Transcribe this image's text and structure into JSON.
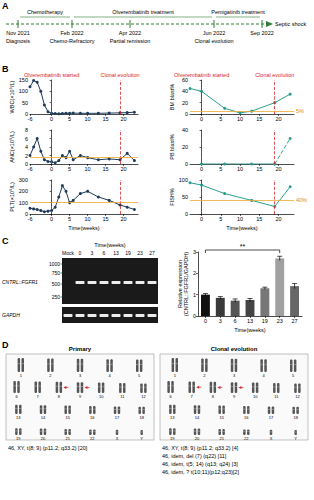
{
  "chart_data": [
    {
      "type": "line",
      "ylabel": "WBC(×10⁹/L)",
      "xlim": [
        -6,
        24
      ],
      "xticks": [
        -6,
        0,
        5,
        10,
        15,
        20
      ],
      "ylim": [
        0,
        150
      ],
      "yticks": [
        0,
        50,
        100,
        150
      ],
      "grid": false,
      "x": [
        -6,
        -5,
        -4,
        -3,
        -2,
        -1,
        0,
        1,
        2,
        3,
        4,
        5,
        6,
        8,
        10,
        13,
        16,
        19,
        21,
        23
      ],
      "series": [
        {
          "color": "#1f3b5a",
          "marker": "circle",
          "line_style": "solid",
          "values": [
            120,
            148,
            140,
            100,
            40,
            10,
            3,
            2,
            1,
            2,
            3,
            3,
            4,
            3,
            3,
            3,
            4,
            5,
            6,
            8
          ]
        }
      ],
      "events": [
        {
          "x": 0,
          "label": "Olverembatinib started"
        },
        {
          "x": 19,
          "label": "Clonal evolution"
        }
      ]
    },
    {
      "type": "line",
      "ylabel": "BM blast%",
      "xlim": [
        -3,
        24
      ],
      "xticks": [
        0,
        5,
        10,
        15,
        20
      ],
      "ylim": [
        0,
        60
      ],
      "yticks": [
        0,
        20,
        40,
        60
      ],
      "grid": false,
      "x": [
        -3,
        0,
        6,
        10,
        13,
        19,
        23
      ],
      "series": [
        {
          "color": "#2a9d8f",
          "marker": "circle",
          "line_style": "solid",
          "values": [
            45,
            40,
            10,
            2,
            5,
            20,
            35
          ]
        }
      ],
      "events": [
        {
          "x": 0,
          "label": "Olverembatinib started"
        },
        {
          "x": 19,
          "label": "Clonal evolution"
        }
      ],
      "reference": {
        "y": 5,
        "label": "5%"
      }
    },
    {
      "type": "line",
      "ylabel": "ANC(×10⁹/L)",
      "xlim": [
        -6,
        24
      ],
      "xticks": [
        -6,
        0,
        5,
        10,
        15,
        20
      ],
      "ylim": [
        0,
        8
      ],
      "yticks": [
        0,
        2,
        4,
        6,
        8
      ],
      "grid": false,
      "x": [
        -6,
        -5,
        -4,
        -3,
        -2,
        -1,
        0,
        1,
        2,
        3,
        4,
        5,
        6,
        8,
        10,
        13,
        16,
        19,
        21,
        23
      ],
      "series": [
        {
          "color": "#1f3b5a",
          "marker": "circle",
          "line_style": "solid",
          "values": [
            2,
            4,
            6,
            3,
            1,
            0.6,
            0.5,
            0.3,
            0.8,
            2,
            1.5,
            3,
            1,
            2,
            1.5,
            1,
            1.2,
            1,
            2.5,
            0.8
          ]
        }
      ],
      "events": [
        {
          "x": 0
        },
        {
          "x": 19
        }
      ],
      "reference": {
        "y": 1.5
      }
    },
    {
      "type": "line",
      "ylabel": "PB blast%",
      "xlim": [
        -3,
        24
      ],
      "xticks": [
        0,
        5,
        10,
        15,
        20
      ],
      "ylim": [
        0,
        40
      ],
      "yticks": [
        0,
        20,
        40
      ],
      "grid": false,
      "x": [
        0,
        6,
        13,
        19,
        23
      ],
      "series": [
        {
          "color": "#2a9d8f",
          "marker": "circle",
          "line_style": "solid",
          "values": [
            0,
            0,
            0,
            0,
            null
          ]
        },
        {
          "color": "#2a9d8f",
          "marker": "circle",
          "line_style": "dashed",
          "values": [
            null,
            null,
            null,
            0,
            30
          ]
        }
      ],
      "events": [
        {
          "x": 0
        },
        {
          "x": 19
        }
      ]
    },
    {
      "type": "line",
      "ylabel": "PLT(×10⁹/L)",
      "xlabel": "Time(weeks)",
      "xlim": [
        -6,
        24
      ],
      "xticks": [
        -6,
        0,
        5,
        10,
        15,
        20
      ],
      "ylim": [
        0,
        300
      ],
      "yticks": [
        0,
        100,
        200,
        300
      ],
      "grid": false,
      "x": [
        -6,
        -5,
        -4,
        -3,
        -2,
        -1,
        0,
        1,
        2,
        3,
        4,
        5,
        6,
        8,
        10,
        13,
        16,
        19,
        21,
        23
      ],
      "series": [
        {
          "color": "#1f3b5a",
          "marker": "circle",
          "line_style": "solid",
          "values": [
            50,
            45,
            40,
            30,
            20,
            25,
            30,
            60,
            150,
            250,
            200,
            100,
            120,
            180,
            200,
            150,
            120,
            80,
            60,
            40
          ]
        }
      ],
      "events": [
        {
          "x": 0
        },
        {
          "x": 19
        }
      ],
      "reference": {
        "y": 100
      }
    },
    {
      "type": "line",
      "ylabel": "FISH%",
      "xlabel": "Time(weeks)",
      "xlim": [
        -3,
        24
      ],
      "xticks": [
        0,
        5,
        10,
        15,
        20
      ],
      "ylim": [
        0,
        100
      ],
      "yticks": [
        0,
        50,
        100
      ],
      "grid": false,
      "x": [
        -3,
        0,
        6,
        13,
        19,
        23
      ],
      "series": [
        {
          "color": "#2a9d8f",
          "marker": "circle",
          "line_style": "solid",
          "values": [
            92,
            85,
            60,
            40,
            22,
            80
          ]
        }
      ],
      "events": [
        {
          "x": 0
        },
        {
          "x": 19
        }
      ],
      "reference": {
        "y": 40,
        "label": "40%"
      }
    },
    {
      "type": "bar",
      "xlabel": "Time(weeks)",
      "ylabel": "Relative expression\n(CNTRL::FGFR1/GAPDH)",
      "categories": [
        "0",
        "3",
        "6",
        "13",
        "19",
        "23",
        "27"
      ],
      "values": [
        1.0,
        0.85,
        0.72,
        0.75,
        1.3,
        2.7,
        1.4
      ],
      "errors": [
        0.05,
        0.06,
        0.08,
        0.07,
        0.05,
        0.1,
        0.12
      ],
      "colors": [
        "#111111",
        "#3a3a3a",
        "#555555",
        "#444444",
        "#777777",
        "#a0a0a0",
        "#666666"
      ],
      "ylim": [
        0,
        3
      ],
      "yticks": [
        0,
        1,
        2,
        3
      ],
      "grid": false,
      "annotation": {
        "text": "**",
        "from": "0",
        "to": "23"
      }
    }
  ],
  "panel_labels": [
    "A",
    "B",
    "C",
    "D"
  ],
  "timeline": {
    "phases": [
      {
        "label": "Chemotherapy",
        "from": "Nov 2021",
        "to": "Feb 2022"
      },
      {
        "label": "Olverembatinib treatment",
        "from": "Feb 2022",
        "to": "Jun 2022"
      },
      {
        "label": "Pemigatinib treatment",
        "from": "Jun 2022",
        "to": "Sep 2022"
      }
    ],
    "milestones": [
      {
        "date": "Nov 2021",
        "event": "Diagnosis"
      },
      {
        "date": "Feb 2022",
        "event": "Chemo-Refractory"
      },
      {
        "date": "Apr 2022",
        "event": "Partial remission"
      },
      {
        "date": "Jun 2022",
        "event": "Clonal evolution"
      },
      {
        "date": "Sep 2022",
        "event": "Septic shock"
      }
    ]
  },
  "gel": {
    "title": "Time(weeks)",
    "lanes": [
      "Mock",
      "0",
      "3",
      "6",
      "13",
      "19",
      "23",
      "27"
    ],
    "ladder": [
      "1000",
      "750",
      "500",
      "250"
    ],
    "bands": [
      {
        "label": "CNTRL::FGFR1",
        "present": [
          false,
          true,
          true,
          true,
          true,
          true,
          true,
          true
        ]
      },
      {
        "label": "GAPDH",
        "present": [
          true,
          true,
          true,
          true,
          true,
          true,
          true,
          true
        ]
      }
    ]
  },
  "karyotype": {
    "chromosomes": [
      "1",
      "2",
      "3",
      "4",
      "5",
      "6",
      "7",
      "8",
      "9",
      "10",
      "11",
      "12",
      "13",
      "14",
      "15",
      "16",
      "17",
      "18",
      "19",
      "20",
      "21",
      "22",
      "X",
      "Y"
    ],
    "panels": [
      {
        "title": "Primary",
        "abnormal": [
          "8",
          "9"
        ],
        "captions": [
          "46, XY, t(8; 9) (p11.2; q33.2) [20]"
        ]
      },
      {
        "title": "Clonal evolution",
        "abnormal": [
          "7",
          "8",
          "9"
        ],
        "captions": [
          "46, XY, t(8; 9) (p11.2; q33.2) [4]",
          "46, idem, del (7) (q22) [11]",
          "46, idem, t(5; 14) (q13; q24) [3]",
          "46, idem, ? t(10;11)(p12;q23)[2]"
        ]
      }
    ]
  }
}
